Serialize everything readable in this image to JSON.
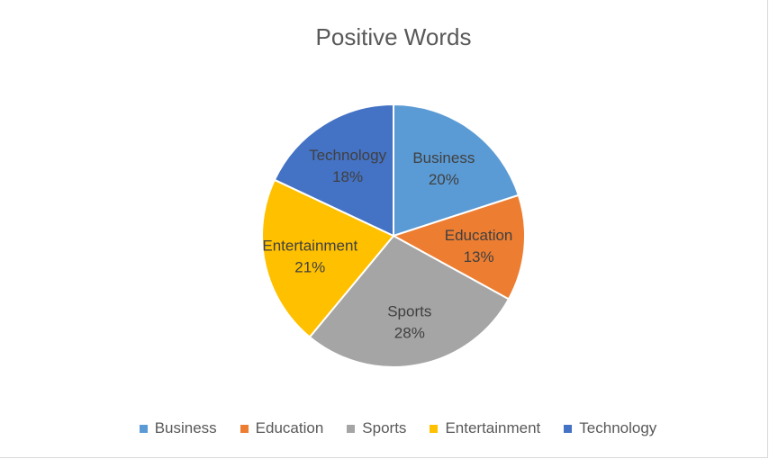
{
  "chart_data": {
    "type": "pie",
    "title": "Positive Words",
    "categories": [
      "Business",
      "Education",
      "Sports",
      "Entertainment",
      "Technology"
    ],
    "values": [
      20,
      13,
      28,
      21,
      18
    ],
    "value_labels": [
      "20%",
      "13%",
      "28%",
      "21%",
      "18%"
    ],
    "colors": [
      "#5b9bd5",
      "#ed7d31",
      "#a5a5a5",
      "#ffc000",
      "#4472c4"
    ],
    "legend_position": "bottom"
  }
}
